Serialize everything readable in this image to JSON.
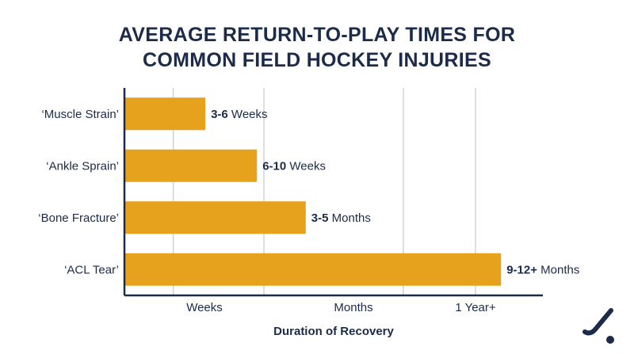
{
  "colors": {
    "bar": "#e6a11d",
    "text": "#1b2b49",
    "grid": "#c8c8c8",
    "axis": "#1b2b49"
  },
  "logo_icon": "hockey-stick-icon",
  "chart_data": {
    "type": "bar",
    "orientation": "horizontal",
    "title": [
      "AVERAGE RETURN-TO-PLAY TIMES FOR",
      "COMMON FIELD HOCKEY INJURIES"
    ],
    "xlabel": "Duration of Recovery",
    "ylabel": "",
    "categories": [
      "‘Muscle Strain’",
      "‘Ankle Sprain’",
      "‘Bone Fracture’",
      "‘ACL Tear’"
    ],
    "x_ticks": [
      "Weeks",
      "Months",
      "1 Year+"
    ],
    "x_tick_values": [
      0.5,
      1.5,
      2.5
    ],
    "xlim": [
      0,
      3.0
    ],
    "values": [
      0.58,
      0.95,
      1.3,
      2.7
    ],
    "data_labels": [
      {
        "bold": "3-6",
        "rest": " Weeks"
      },
      {
        "bold": "6-10",
        "rest": " Weeks"
      },
      {
        "bold": "3-5",
        "rest": " Months"
      },
      {
        "bold": "9-12+",
        "rest": " Months"
      }
    ],
    "grid": true,
    "legend": "none"
  }
}
